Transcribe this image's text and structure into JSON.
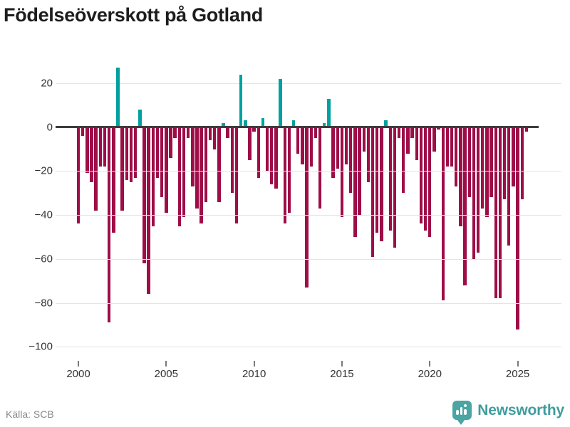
{
  "title": "Födelseöverskott på Gotland",
  "source": {
    "label": "Källa: SCB"
  },
  "brand": {
    "name": "Newsworthy",
    "logo_icon": "bar-chart-pin-icon",
    "color": "#4aa5a3"
  },
  "colors": {
    "negative_bar": "#9e0d48",
    "positive_bar": "#00a0a0",
    "gridline": "#e4e4e4",
    "zero_line": "#3d3d3d",
    "axis_text": "#333333",
    "source_text": "#8a8a8a"
  },
  "chart_data": {
    "type": "bar",
    "title": "Födelseöverskott på Gotland",
    "xlabel": "",
    "ylabel": "",
    "grid": true,
    "legend": false,
    "ylim": [
      -100,
      28
    ],
    "y_ticks": [
      {
        "value": 20,
        "label": "20"
      },
      {
        "value": 0,
        "label": "0"
      },
      {
        "value": -20,
        "label": "−20"
      },
      {
        "value": -40,
        "label": "−40"
      },
      {
        "value": -60,
        "label": "−60"
      },
      {
        "value": -80,
        "label": "−80"
      },
      {
        "value": -100,
        "label": "−100"
      }
    ],
    "x_ticks": [
      {
        "year": 2000,
        "label": "2000"
      },
      {
        "year": 2005,
        "label": "2005"
      },
      {
        "year": 2010,
        "label": "2010"
      },
      {
        "year": 2015,
        "label": "2015"
      },
      {
        "year": 2020,
        "label": "2020"
      },
      {
        "year": 2025,
        "label": "2025"
      }
    ],
    "frequency": "quarterly",
    "categories": [
      "2000 Q1",
      "2000 Q2",
      "2000 Q3",
      "2000 Q4",
      "2001 Q1",
      "2001 Q2",
      "2001 Q3",
      "2001 Q4",
      "2002 Q1",
      "2002 Q2",
      "2002 Q3",
      "2002 Q4",
      "2003 Q1",
      "2003 Q2",
      "2003 Q3",
      "2003 Q4",
      "2004 Q1",
      "2004 Q2",
      "2004 Q3",
      "2004 Q4",
      "2005 Q1",
      "2005 Q2",
      "2005 Q3",
      "2005 Q4",
      "2006 Q1",
      "2006 Q2",
      "2006 Q3",
      "2006 Q4",
      "2007 Q1",
      "2007 Q2",
      "2007 Q3",
      "2007 Q4",
      "2008 Q1",
      "2008 Q2",
      "2008 Q3",
      "2008 Q4",
      "2009 Q1",
      "2009 Q2",
      "2009 Q3",
      "2009 Q4",
      "2010 Q1",
      "2010 Q2",
      "2010 Q3",
      "2010 Q4",
      "2011 Q1",
      "2011 Q2",
      "2011 Q3",
      "2011 Q4",
      "2012 Q1",
      "2012 Q2",
      "2012 Q3",
      "2012 Q4",
      "2013 Q1",
      "2013 Q2",
      "2013 Q3",
      "2013 Q4",
      "2014 Q1",
      "2014 Q2",
      "2014 Q3",
      "2014 Q4",
      "2015 Q1",
      "2015 Q2",
      "2015 Q3",
      "2015 Q4",
      "2016 Q1",
      "2016 Q2",
      "2016 Q3",
      "2016 Q4",
      "2017 Q1",
      "2017 Q2",
      "2017 Q3",
      "2017 Q4",
      "2018 Q1",
      "2018 Q2",
      "2018 Q3",
      "2018 Q4",
      "2019 Q1",
      "2019 Q2",
      "2019 Q3",
      "2019 Q4",
      "2020 Q1",
      "2020 Q2",
      "2020 Q3",
      "2020 Q4",
      "2021 Q1",
      "2021 Q2",
      "2021 Q3",
      "2021 Q4",
      "2022 Q1",
      "2022 Q2",
      "2022 Q3",
      "2022 Q4",
      "2023 Q1",
      "2023 Q2",
      "2023 Q3",
      "2023 Q4",
      "2024 Q1",
      "2024 Q2",
      "2024 Q3",
      "2024 Q4",
      "2025 Q1",
      "2025 Q2",
      "2025 Q3"
    ],
    "values": [
      -44,
      -4,
      -21,
      -25,
      -38,
      -18,
      -18,
      -89,
      -48,
      27,
      -38,
      -24,
      -25,
      -23,
      8,
      -62,
      -76,
      -45,
      -23,
      -32,
      -39,
      -14,
      -5,
      -45,
      -41,
      -5,
      -27,
      -37,
      -44,
      -34,
      -6,
      -10,
      -34,
      2,
      -5,
      -30,
      -44,
      24,
      3,
      -15,
      -2,
      -23,
      4,
      -20,
      -26,
      -28,
      22,
      -44,
      -39,
      3,
      -12,
      -17,
      -73,
      -18,
      -5,
      -37,
      2,
      13,
      -23,
      -19,
      -41,
      -17,
      -30,
      -50,
      -40,
      -11,
      -25,
      -59,
      -48,
      -52,
      3,
      -47,
      -55,
      -5,
      -30,
      -12,
      -5,
      -15,
      -44,
      -47,
      -50,
      -11,
      -1,
      -79,
      -18,
      -18,
      -27,
      -45,
      -72,
      -32,
      -60,
      -57,
      -37,
      -41,
      -32,
      -78,
      -78,
      -33,
      -54,
      -27,
      -92,
      -33,
      -2
    ]
  }
}
